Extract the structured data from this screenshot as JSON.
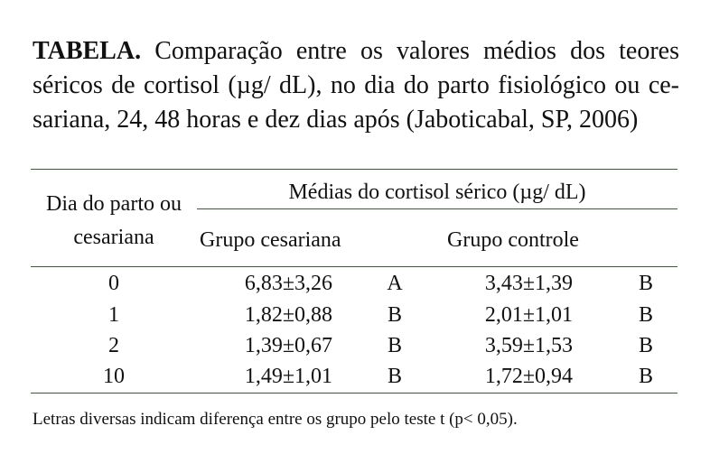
{
  "caption": {
    "label": "TABELA.",
    "text": "Comparação entre os valores médios dos teores séricos de cortisol (µg/ dL), no dia do parto fisiológico ou ce- sariana, 24, 48 horas e dez dias após (Jaboticabal, SP, 2006)"
  },
  "table": {
    "col1_header_line1": "Dia do parto ou",
    "col1_header_line2": "cesariana",
    "group_header": "Médias do cortisol sérico (µg/ dL)",
    "sub_header_1": "Grupo cesariana",
    "sub_header_2": "Grupo controle",
    "rows": [
      {
        "day": "0",
        "ces": "6,83±3,26",
        "ces_letter": "A",
        "ctrl": "3,43±1,39",
        "ctrl_letter": "B"
      },
      {
        "day": "1",
        "ces": "1,82±0,88",
        "ces_letter": "B",
        "ctrl": "2,01±1,01",
        "ctrl_letter": "B"
      },
      {
        "day": "2",
        "ces": "1,39±0,67",
        "ces_letter": "B",
        "ctrl": "3,59±1,53",
        "ctrl_letter": "B"
      },
      {
        "day": "10",
        "ces": "1,49±1,01",
        "ces_letter": "B",
        "ctrl": "1,72±0,94",
        "ctrl_letter": "B"
      }
    ]
  },
  "footnote": "Letras diversas indicam diferença entre os grupo pelo teste t (p< 0,05)."
}
